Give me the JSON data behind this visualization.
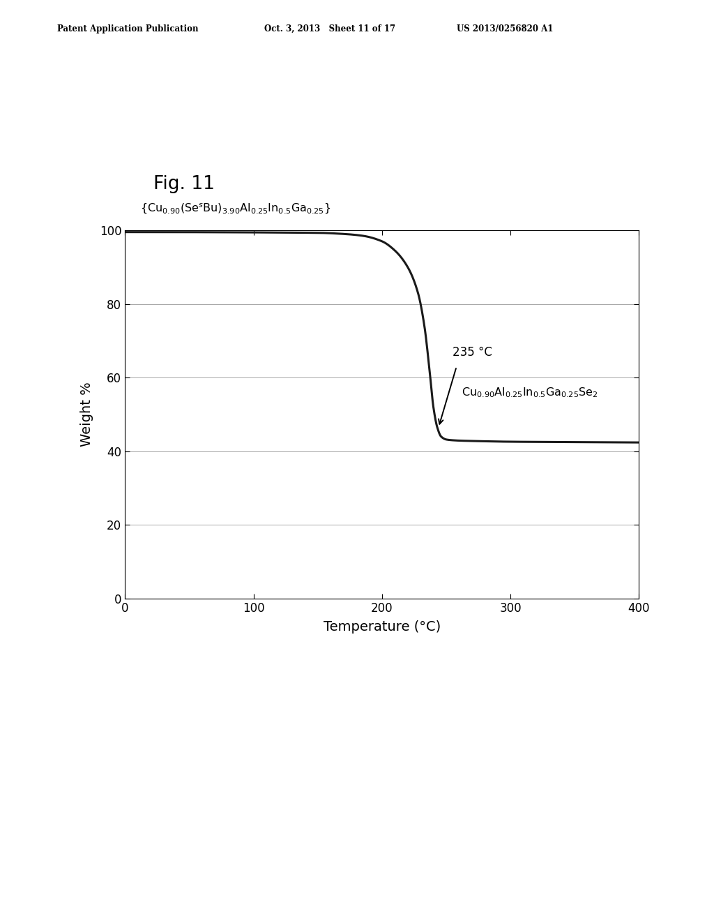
{
  "fig_label": "Fig. 11",
  "header_left": "Patent Application Publication",
  "header_mid": "Oct. 3, 2013   Sheet 11 of 17",
  "header_right": "US 2013/0256820 A1",
  "xlabel": "Temperature (°C)",
  "ylabel": "Weight %",
  "xlim": [
    0,
    400
  ],
  "ylim": [
    0,
    100
  ],
  "xticks": [
    0,
    100,
    200,
    300,
    400
  ],
  "yticks": [
    0,
    20,
    40,
    60,
    80,
    100
  ],
  "annotation_temp": "235 °C",
  "curve_color": "#1a1a1a",
  "background_color": "#ffffff",
  "grid_color": "#999999",
  "curve_x": [
    0,
    150,
    170,
    185,
    200,
    210,
    220,
    228,
    233,
    237,
    240,
    243,
    246,
    250,
    255,
    260,
    270,
    300,
    350,
    400
  ],
  "curve_y": [
    99.5,
    99.3,
    99.0,
    98.5,
    97.0,
    94.5,
    90.0,
    83.0,
    74.0,
    62.0,
    52.0,
    46.5,
    44.0,
    43.2,
    43.0,
    42.9,
    42.8,
    42.6,
    42.5,
    42.4
  ]
}
